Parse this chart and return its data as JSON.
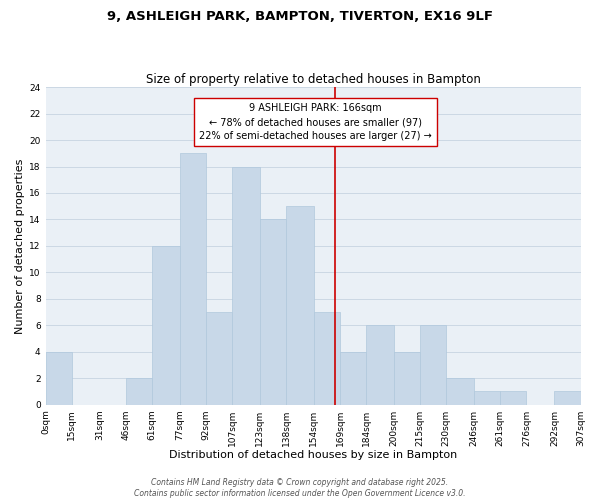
{
  "title": "9, ASHLEIGH PARK, BAMPTON, TIVERTON, EX16 9LF",
  "subtitle": "Size of property relative to detached houses in Bampton",
  "xlabel": "Distribution of detached houses by size in Bampton",
  "ylabel": "Number of detached properties",
  "bar_color": "#c8d8e8",
  "bar_edge_color": "#b0c8dc",
  "bin_edges": [
    0,
    15,
    31,
    46,
    61,
    77,
    92,
    107,
    123,
    138,
    154,
    169,
    184,
    200,
    215,
    230,
    246,
    261,
    276,
    292,
    307
  ],
  "counts": [
    4,
    0,
    0,
    2,
    12,
    19,
    7,
    18,
    14,
    15,
    7,
    4,
    6,
    4,
    6,
    2,
    1,
    1,
    0,
    1
  ],
  "tick_labels": [
    "0sqm",
    "15sqm",
    "31sqm",
    "46sqm",
    "61sqm",
    "77sqm",
    "92sqm",
    "107sqm",
    "123sqm",
    "138sqm",
    "154sqm",
    "169sqm",
    "184sqm",
    "200sqm",
    "215sqm",
    "230sqm",
    "246sqm",
    "261sqm",
    "276sqm",
    "292sqm",
    "307sqm"
  ],
  "vline_x": 166,
  "vline_color": "#cc0000",
  "annotation_title": "9 ASHLEIGH PARK: 166sqm",
  "annotation_line1": "← 78% of detached houses are smaller (97)",
  "annotation_line2": "22% of semi-detached houses are larger (27) →",
  "annotation_box_color": "#ffffff",
  "annotation_box_edge": "#cc0000",
  "ylim": [
    0,
    24
  ],
  "yticks": [
    0,
    2,
    4,
    6,
    8,
    10,
    12,
    14,
    16,
    18,
    20,
    22,
    24
  ],
  "grid_color": "#ccd8e4",
  "background_color": "#eaf0f6",
  "footer_line1": "Contains HM Land Registry data © Crown copyright and database right 2025.",
  "footer_line2": "Contains public sector information licensed under the Open Government Licence v3.0.",
  "title_fontsize": 9.5,
  "subtitle_fontsize": 8.5,
  "axis_label_fontsize": 8,
  "tick_fontsize": 6.5,
  "annotation_fontsize": 7,
  "footer_fontsize": 5.5
}
